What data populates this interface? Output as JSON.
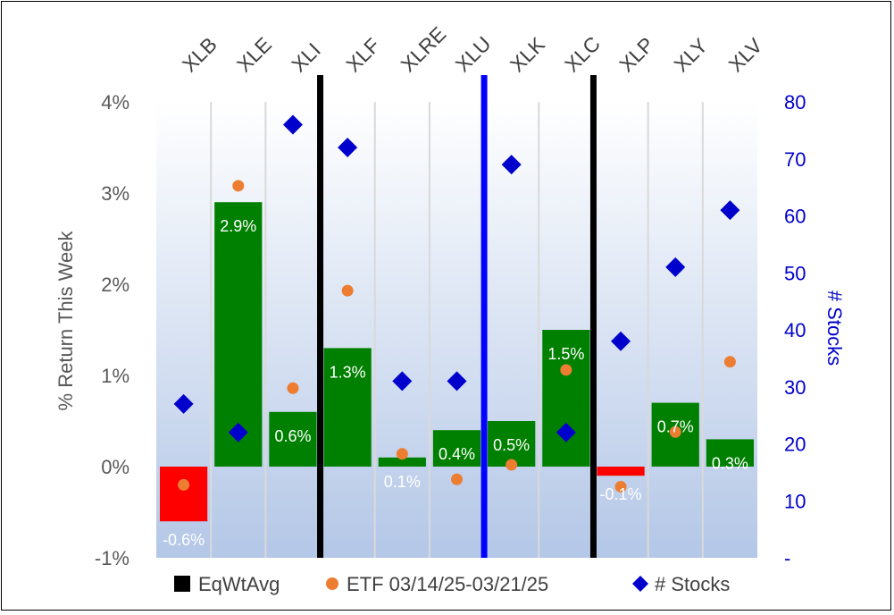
{
  "chart_data": {
    "type": "bar",
    "categories": [
      "XLB",
      "XLE",
      "XLI",
      "XLF",
      "XLRE",
      "XLU",
      "XLK",
      "XLC",
      "XLP",
      "XLY",
      "XLV"
    ],
    "series": [
      {
        "name": "EqWtAvg",
        "kind": "bar",
        "axis": "left",
        "values": [
          -0.6,
          2.9,
          0.6,
          1.3,
          0.1,
          0.4,
          0.5,
          1.5,
          -0.1,
          0.7,
          0.3
        ],
        "data_labels": [
          "-0.6%",
          "2.9%",
          "0.6%",
          "1.3%",
          "0.1%",
          "0.4%",
          "0.5%",
          "1.5%",
          "-0.1%",
          "0.7%",
          "0.3%"
        ]
      },
      {
        "name": "ETF 03/14/25-03/21/25",
        "kind": "scatter",
        "axis": "left",
        "values": [
          -0.2,
          3.08,
          0.86,
          1.93,
          0.14,
          -0.14,
          0.02,
          1.06,
          -0.22,
          0.38,
          1.15
        ]
      },
      {
        "name": "# Stocks",
        "kind": "scatter",
        "axis": "right",
        "values": [
          27,
          22,
          76,
          72,
          31,
          31,
          69,
          22,
          38,
          51,
          61
        ]
      }
    ],
    "ylabel": "% Return This Week",
    "y2label": "# Stocks",
    "ylim": [
      -1,
      4
    ],
    "y2lim": [
      0,
      80
    ],
    "yticks": [
      "-1%",
      "0%",
      "1%",
      "2%",
      "3%",
      "4%"
    ],
    "y2ticks": [
      "-",
      "10",
      "20",
      "30",
      "40",
      "50",
      "60",
      "70",
      "80"
    ],
    "separators": [
      {
        "after_index": 2,
        "color": "#000000"
      },
      {
        "after_index": 5,
        "color": "#0000FF"
      },
      {
        "after_index": 7,
        "color": "#000000"
      }
    ],
    "legend_position": "bottom",
    "grid": "vertical",
    "colors": {
      "bar_positive": "#008000",
      "bar_negative": "#FF0000",
      "etf_marker": "#ED7D31",
      "stocks_marker": "#0000CC",
      "legend_eqwt": "#000000",
      "plot_bg_top": "#FFFFFF",
      "plot_bg_bottom": "#B4C7E7"
    }
  }
}
